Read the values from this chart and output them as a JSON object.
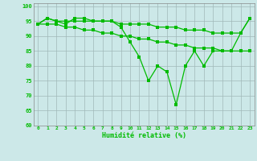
{
  "x": [
    0,
    1,
    2,
    3,
    4,
    5,
    6,
    7,
    8,
    9,
    10,
    11,
    12,
    13,
    14,
    15,
    16,
    17,
    18,
    19,
    20,
    21,
    22,
    23
  ],
  "line1": [
    94,
    96,
    95,
    94,
    96,
    96,
    95,
    95,
    95,
    93,
    88,
    83,
    75,
    80,
    78,
    67,
    80,
    85,
    80,
    85,
    85,
    85,
    91,
    96
  ],
  "line2": [
    94,
    96,
    95,
    95,
    95,
    95,
    95,
    95,
    95,
    94,
    94,
    94,
    94,
    93,
    93,
    93,
    92,
    92,
    92,
    91,
    91,
    91,
    91,
    96
  ],
  "line3": [
    94,
    94,
    94,
    93,
    93,
    92,
    92,
    91,
    91,
    90,
    90,
    89,
    89,
    88,
    88,
    87,
    87,
    86,
    86,
    86,
    85,
    85,
    85,
    85
  ],
  "bg_color": "#cce8e8",
  "grid_color": "#a0b8b8",
  "line_color": "#00bb00",
  "xlabel": "Humidité relative (%)",
  "ylim": [
    60,
    101
  ],
  "xlim": [
    -0.5,
    23.5
  ],
  "yticks": [
    60,
    65,
    70,
    75,
    80,
    85,
    90,
    95,
    100
  ],
  "xticks": [
    0,
    1,
    2,
    3,
    4,
    5,
    6,
    7,
    8,
    9,
    10,
    11,
    12,
    13,
    14,
    15,
    16,
    17,
    18,
    19,
    20,
    21,
    22,
    23
  ]
}
